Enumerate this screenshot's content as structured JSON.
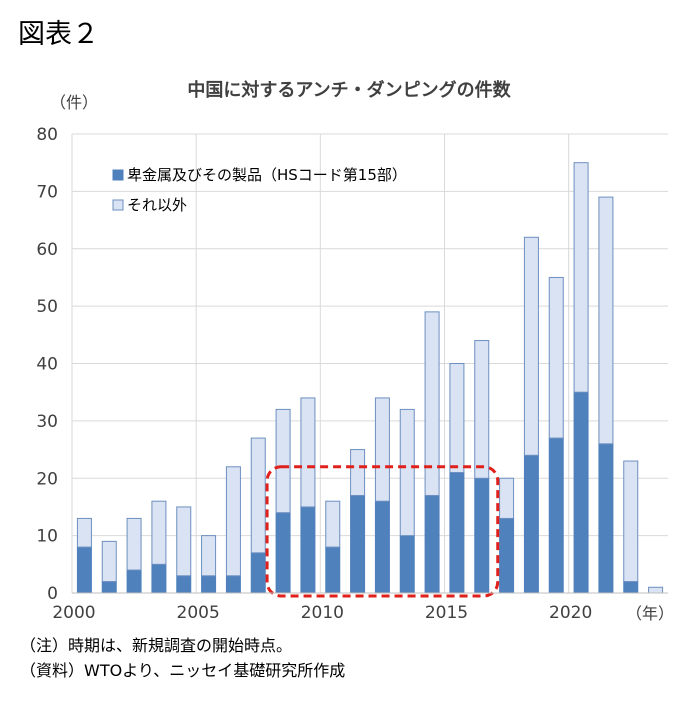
{
  "figure_label": "図表２",
  "notes": [
    "（注）時期は、新規調査の開始時点。",
    "（資料）WTOより、ニッセイ基礎研究所作成"
  ],
  "chart_data": {
    "type": "bar",
    "stacked": true,
    "title": "中国に対するアンチ・ダンピングの件数",
    "ylabel": "（件）",
    "xlabel": "（年）",
    "ylim": [
      0,
      80
    ],
    "yticks": [
      0,
      10,
      20,
      30,
      40,
      50,
      60,
      70,
      80
    ],
    "xticks": [
      2000,
      2005,
      2010,
      2015,
      2020
    ],
    "x": [
      2000,
      2001,
      2002,
      2003,
      2004,
      2005,
      2006,
      2007,
      2008,
      2009,
      2010,
      2011,
      2012,
      2013,
      2014,
      2015,
      2016,
      2017,
      2018,
      2019,
      2020,
      2021,
      2022,
      2023
    ],
    "series": [
      {
        "name": "卑金属及びその製品（HSコード第15部）",
        "color": "#4f81bd",
        "values": [
          8,
          2,
          4,
          5,
          3,
          3,
          3,
          7,
          14,
          15,
          8,
          17,
          16,
          10,
          17,
          21,
          20,
          13,
          24,
          27,
          35,
          26,
          2,
          0
        ]
      },
      {
        "name": "それ以外",
        "color": "#dae3f3",
        "values": [
          5,
          7,
          9,
          11,
          12,
          7,
          19,
          20,
          18,
          19,
          8,
          8,
          18,
          22,
          32,
          19,
          24,
          7,
          38,
          28,
          40,
          43,
          21,
          1
        ]
      }
    ],
    "highlight": {
      "from": 2008,
      "to": 2016,
      "style": "dashed",
      "color": "#e0201b"
    },
    "grid": true,
    "legend_position": "top-left"
  }
}
